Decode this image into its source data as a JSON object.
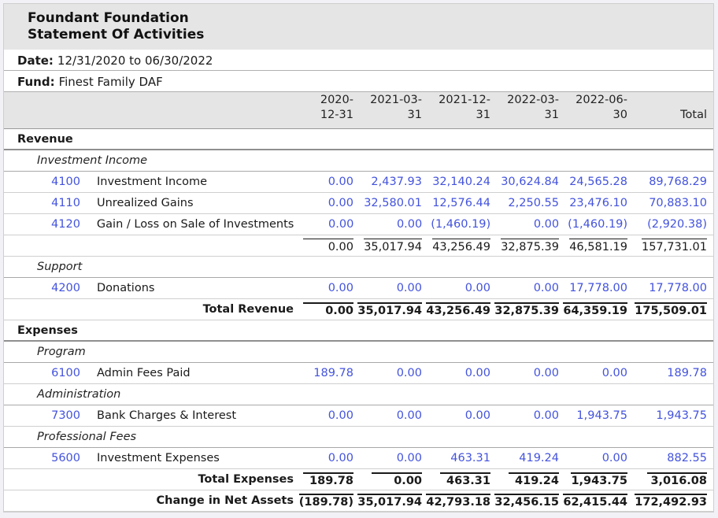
{
  "report": {
    "title_line1": "Foundant Foundation",
    "title_line2": "Statement Of Activities",
    "date_label": "Date:",
    "date_value": "12/31/2020 to 06/30/2022",
    "fund_label": "Fund:",
    "fund_value": "Finest Family DAF"
  },
  "table": {
    "columns": [
      {
        "line1": "2020-",
        "line2": "12-31"
      },
      {
        "line1": "2021-03-",
        "line2": "31"
      },
      {
        "line1": "2021-12-",
        "line2": "31"
      },
      {
        "line1": "2022-03-",
        "line2": "31"
      },
      {
        "line1": "2022-06-",
        "line2": "30"
      },
      {
        "line1": "",
        "line2": "Total"
      }
    ],
    "rows": [
      {
        "type": "section",
        "label": "Revenue"
      },
      {
        "type": "subsection",
        "label": "Investment Income"
      },
      {
        "type": "account",
        "number": "4100",
        "name": "Investment Income",
        "values": [
          "0.00",
          "2,437.93",
          "32,140.24",
          "30,624.84",
          "24,565.28",
          "89,768.29"
        ]
      },
      {
        "type": "account",
        "number": "4110",
        "name": "Unrealized Gains",
        "values": [
          "0.00",
          "32,580.01",
          "12,576.44",
          "2,250.55",
          "23,476.10",
          "70,883.10"
        ]
      },
      {
        "type": "account",
        "number": "4120",
        "name": "Gain / Loss on Sale of Investments",
        "values": [
          "0.00",
          "0.00",
          "(1,460.19)",
          "0.00",
          "(1,460.19)",
          "(2,920.38)"
        ]
      },
      {
        "type": "subtotal",
        "label": "",
        "values": [
          "0.00",
          "35,017.94",
          "43,256.49",
          "32,875.39",
          "46,581.19",
          "157,731.01"
        ]
      },
      {
        "type": "subsection",
        "label": "Support"
      },
      {
        "type": "account",
        "number": "4200",
        "name": "Donations",
        "values": [
          "0.00",
          "0.00",
          "0.00",
          "0.00",
          "17,778.00",
          "17,778.00"
        ]
      },
      {
        "type": "total",
        "label": "Total Revenue",
        "values": [
          "0.00",
          "35,017.94",
          "43,256.49",
          "32,875.39",
          "64,359.19",
          "175,509.01"
        ]
      },
      {
        "type": "section",
        "label": "Expenses"
      },
      {
        "type": "subsection",
        "label": "Program"
      },
      {
        "type": "account",
        "number": "6100",
        "name": "Admin Fees Paid",
        "values": [
          "189.78",
          "0.00",
          "0.00",
          "0.00",
          "0.00",
          "189.78"
        ]
      },
      {
        "type": "subsection",
        "label": "Administration"
      },
      {
        "type": "account",
        "number": "7300",
        "name": "Bank Charges & Interest",
        "values": [
          "0.00",
          "0.00",
          "0.00",
          "0.00",
          "1,943.75",
          "1,943.75"
        ]
      },
      {
        "type": "subsection",
        "label": "Professional Fees"
      },
      {
        "type": "account",
        "number": "5600",
        "name": "Investment Expenses",
        "values": [
          "0.00",
          "0.00",
          "463.31",
          "419.24",
          "0.00",
          "882.55"
        ]
      },
      {
        "type": "total",
        "label": "Total Expenses",
        "values": [
          "189.78",
          "0.00",
          "463.31",
          "419.24",
          "1,943.75",
          "3,016.08"
        ]
      },
      {
        "type": "total",
        "label": "Change in Net Assets",
        "values": [
          "(189.78)",
          "35,017.94",
          "42,793.18",
          "32,456.15",
          "62,415.44",
          "172,492.93"
        ]
      }
    ]
  },
  "colors": {
    "accent_blue": "#4353dd",
    "band_gray": "#e5e5e5",
    "text_black": "#1a1a1a",
    "page_background": "#f1f1f6"
  }
}
